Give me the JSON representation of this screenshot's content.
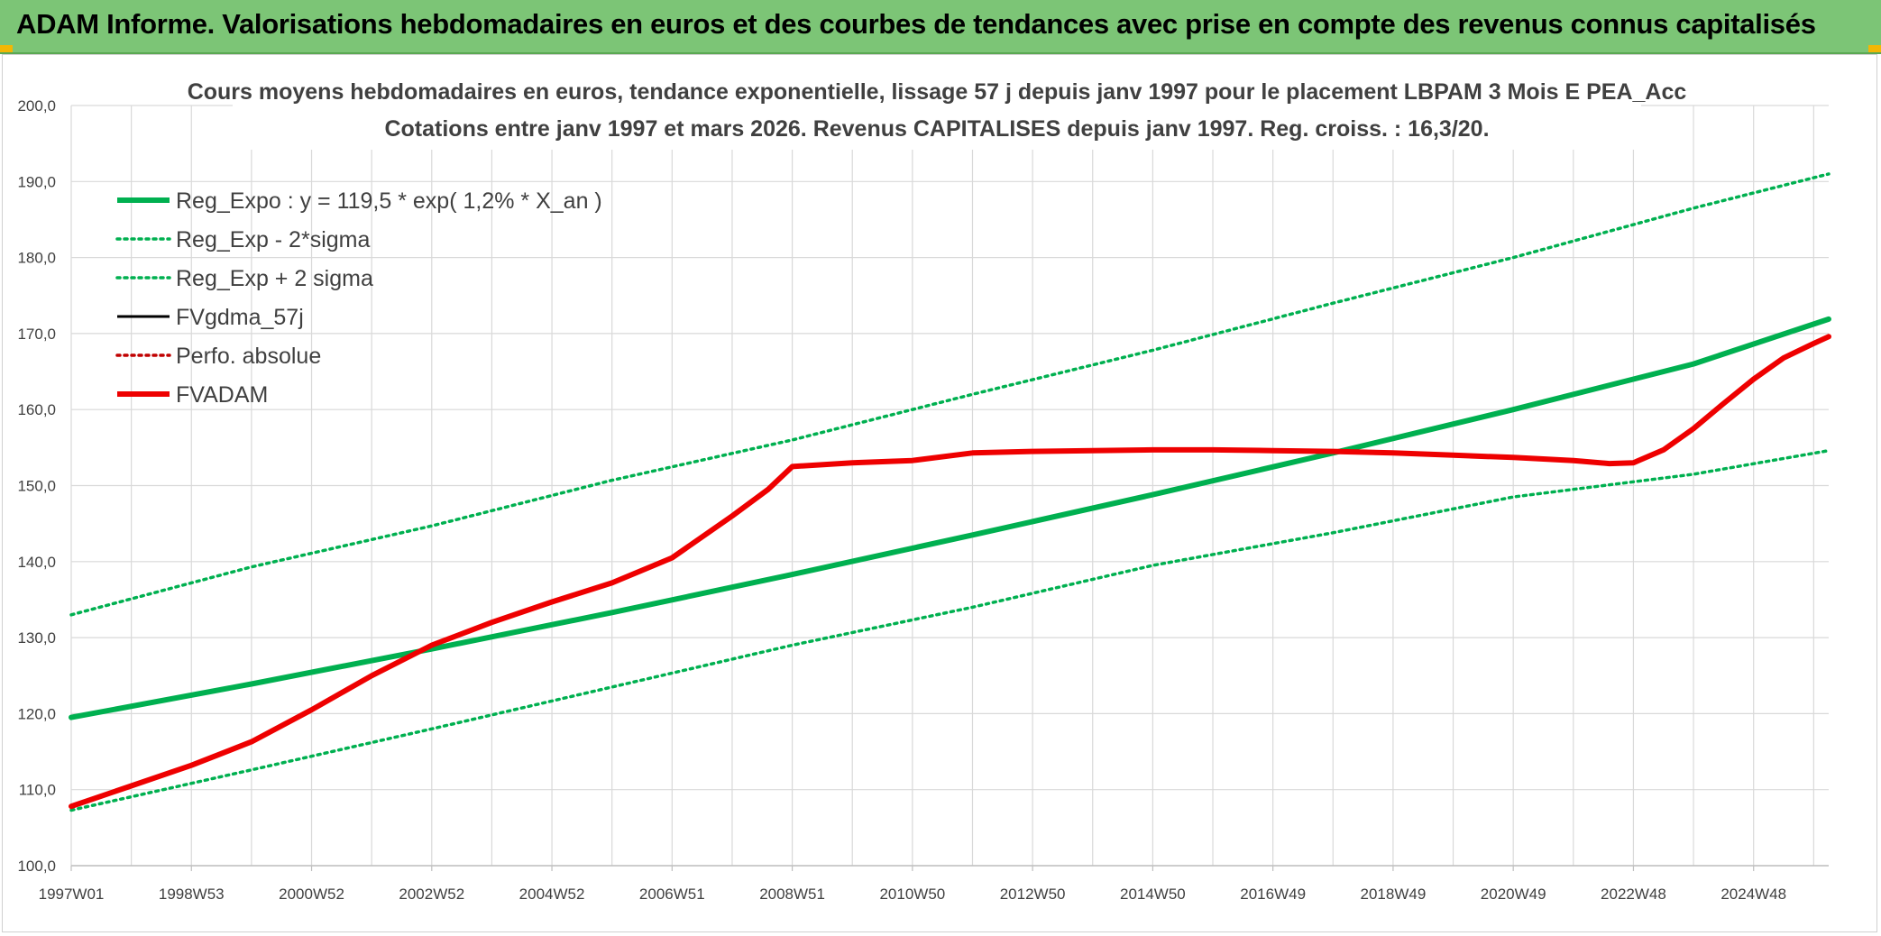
{
  "header": {
    "banner_title": "ADAM Informe. Valorisations hebdomadaires en euros et des courbes de tendances avec prise en compte des revenus connus capitalisés"
  },
  "chart_data": {
    "type": "line",
    "title": "Cours moyens hebdomadaires en euros, tendance exponentielle, lissage 57 j depuis janv 1997 pour le placement LBPAM 3 Mois E PEA_Acc",
    "subtitle": "Cotations entre janv 1997 et mars 2026. Revenus CAPITALISES depuis janv 1997. Reg. croiss. : 16,3/20.",
    "xlabel": "",
    "ylabel": "",
    "x_range": [
      1997.0,
      2026.25
    ],
    "ylim": [
      100,
      200
    ],
    "y_ticks": [
      "100,0",
      "110,0",
      "120,0",
      "130,0",
      "140,0",
      "150,0",
      "160,0",
      "170,0",
      "180,0",
      "190,0",
      "200,0"
    ],
    "x_ticks": [
      {
        "label": "1997W01",
        "x": 1997.0
      },
      {
        "label": "1998W53",
        "x": 1999.0
      },
      {
        "label": "2000W52",
        "x": 2001.0
      },
      {
        "label": "2002W52",
        "x": 2003.0
      },
      {
        "label": "2004W52",
        "x": 2005.0
      },
      {
        "label": "2006W51",
        "x": 2007.0
      },
      {
        "label": "2008W51",
        "x": 2009.0
      },
      {
        "label": "2010W50",
        "x": 2011.0
      },
      {
        "label": "2012W50",
        "x": 2013.0
      },
      {
        "label": "2014W50",
        "x": 2015.0
      },
      {
        "label": "2016W49",
        "x": 2017.0
      },
      {
        "label": "2018W49",
        "x": 2019.0
      },
      {
        "label": "2020W49",
        "x": 2021.0
      },
      {
        "label": "2022W48",
        "x": 2023.0
      },
      {
        "label": "2024W48",
        "x": 2025.0
      }
    ],
    "grid": true,
    "legend_position": "top-left",
    "series": [
      {
        "name": "Reg_Expo : y = 119,5 * exp( 1,2% *  X_an )",
        "color": "#00b050",
        "style": "solid-thick",
        "x": [
          1997.0,
          2000.0,
          2003.0,
          2006.0,
          2009.0,
          2012.0,
          2015.0,
          2018.0,
          2021.0,
          2024.0,
          2026.25
        ],
        "y": [
          119.5,
          123.9,
          128.5,
          133.3,
          138.3,
          143.5,
          148.8,
          154.3,
          160.0,
          166.0,
          171.9
        ]
      },
      {
        "name": "Reg_Exp - 2*sigma",
        "color": "#00b050",
        "style": "dotted",
        "x": [
          1997.0,
          2000.0,
          2003.0,
          2006.0,
          2009.0,
          2012.0,
          2015.0,
          2018.0,
          2021.0,
          2024.0,
          2026.25
        ],
        "y": [
          107.3,
          112.6,
          118.0,
          123.5,
          129.0,
          134.0,
          139.5,
          143.8,
          148.5,
          151.5,
          154.6
        ]
      },
      {
        "name": "Reg_Exp + 2 sigma",
        "color": "#00b050",
        "style": "dotted",
        "x": [
          1997.0,
          2000.0,
          2003.0,
          2006.0,
          2009.0,
          2012.0,
          2015.0,
          2018.0,
          2021.0,
          2024.0,
          2026.25
        ],
        "y": [
          133.0,
          139.3,
          144.7,
          150.7,
          156.0,
          162.0,
          167.8,
          174.0,
          180.0,
          186.5,
          191.0
        ]
      },
      {
        "name": "FVgdma_57j",
        "color": "#000000",
        "style": "solid",
        "x": [],
        "y": []
      },
      {
        "name": "Perfo. absolue",
        "color": "#c00000",
        "style": "dotted",
        "x": [],
        "y": []
      },
      {
        "name": "FVADAM",
        "color": "#ee0000",
        "style": "solid-thick",
        "x": [
          1997.0,
          1998.0,
          1999.0,
          2000.0,
          2001.0,
          2002.0,
          2003.0,
          2004.0,
          2005.0,
          2006.0,
          2007.0,
          2008.0,
          2008.6,
          2009.0,
          2010.0,
          2011.0,
          2012.0,
          2013.0,
          2014.0,
          2015.0,
          2016.0,
          2017.0,
          2018.0,
          2019.0,
          2020.0,
          2021.0,
          2022.0,
          2022.6,
          2023.0,
          2023.5,
          2024.0,
          2024.5,
          2025.0,
          2025.5,
          2026.0,
          2026.25
        ],
        "y": [
          107.8,
          110.5,
          113.2,
          116.3,
          120.5,
          125.0,
          129.0,
          132.0,
          134.7,
          137.2,
          140.5,
          146.0,
          149.5,
          152.5,
          153.0,
          153.3,
          154.3,
          154.5,
          154.6,
          154.7,
          154.7,
          154.6,
          154.5,
          154.3,
          154.0,
          153.7,
          153.3,
          152.9,
          153.0,
          154.7,
          157.5,
          160.8,
          164.0,
          166.8,
          168.7,
          169.6
        ]
      }
    ]
  }
}
